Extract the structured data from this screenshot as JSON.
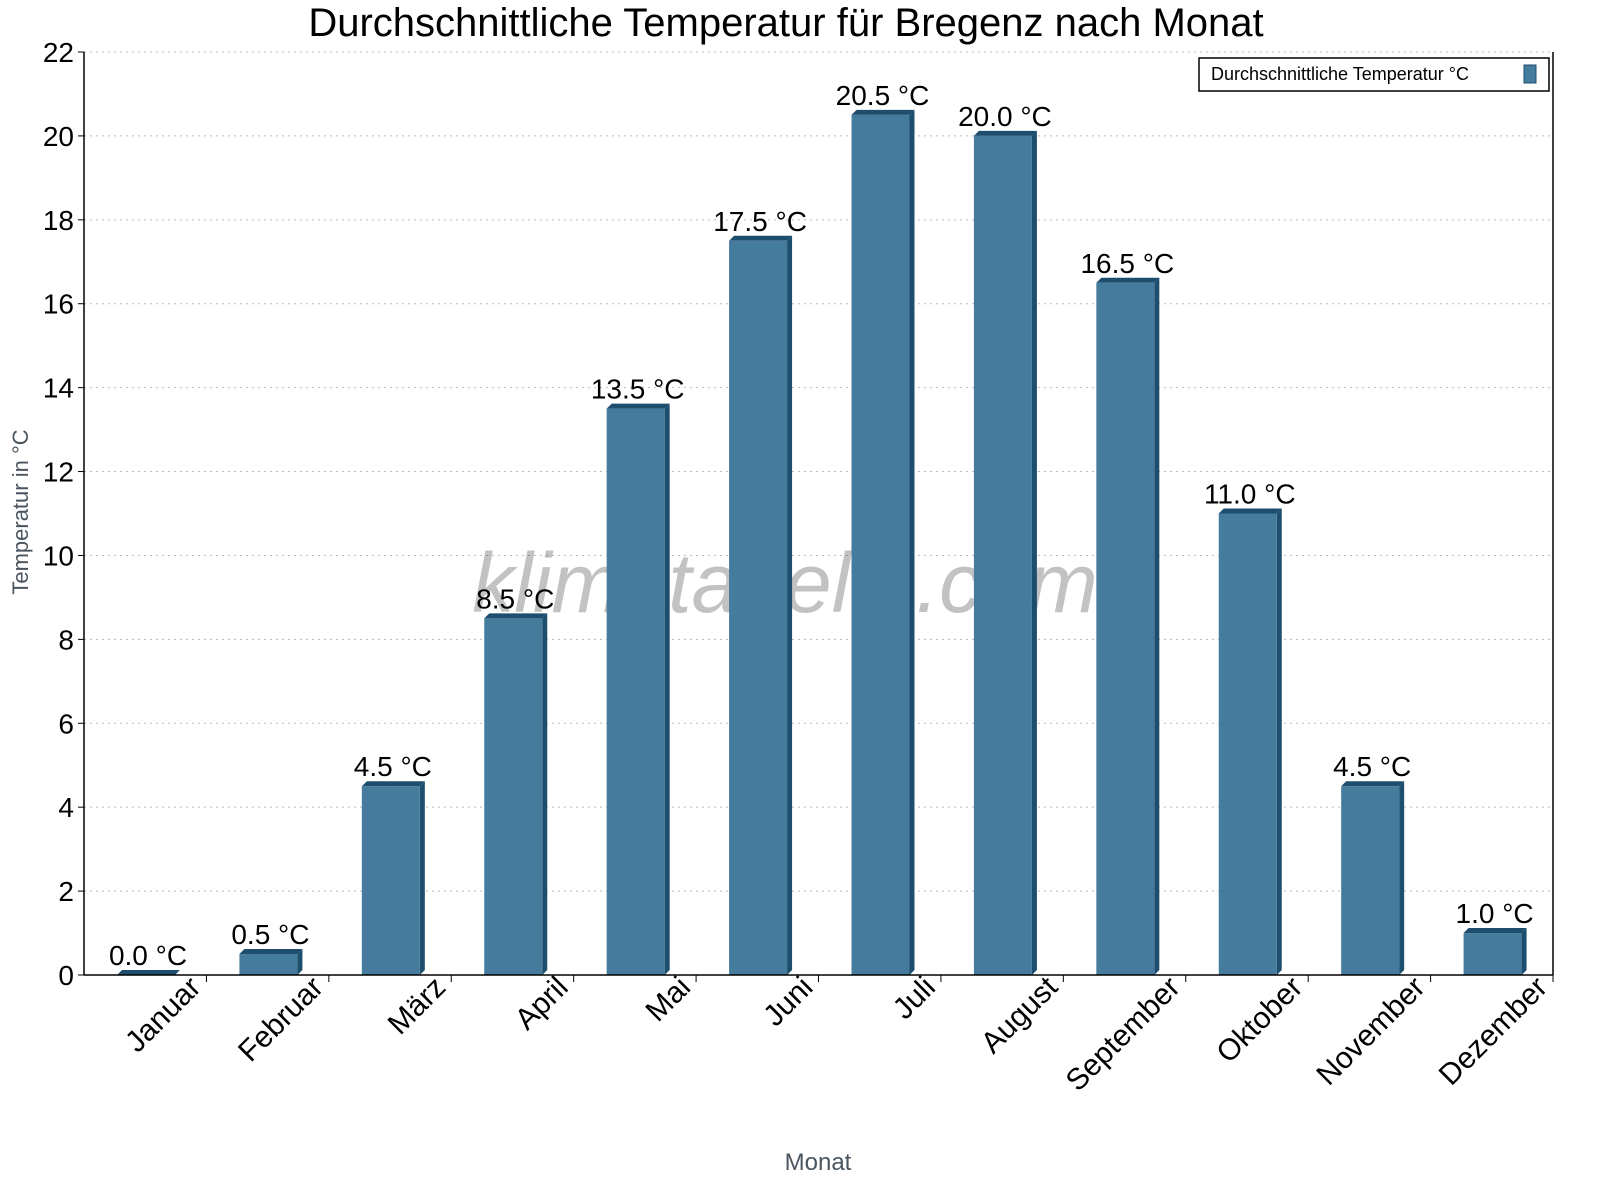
{
  "chart_data": {
    "type": "bar",
    "title": "Durchschnittliche Temperatur für Bregenz nach Monat",
    "xlabel": "Monat",
    "ylabel": "Temperatur in °C",
    "categories": [
      "Januar",
      "Februar",
      "März",
      "April",
      "Mai",
      "Juni",
      "Juli",
      "August",
      "September",
      "Oktober",
      "November",
      "Dezember"
    ],
    "series": [
      {
        "name": "Durchschnittliche Temperatur °C",
        "values": [
          0.0,
          0.5,
          4.5,
          8.5,
          13.5,
          17.5,
          20.5,
          20.0,
          16.5,
          11.0,
          4.5,
          1.0
        ],
        "labels": [
          "0.0 °C",
          "0.5 °C",
          "4.5 °C",
          "8.5 °C",
          "13.5 °C",
          "17.5 °C",
          "20.5 °C",
          "20.0 °C",
          "16.5 °C",
          "11.0 °C",
          "4.5 °C",
          "1.0 °C"
        ]
      }
    ],
    "ylim": [
      0,
      22
    ],
    "yticks": [
      "0",
      "2",
      "4",
      "6",
      "8",
      "10",
      "12",
      "14",
      "16",
      "18",
      "20",
      "22"
    ],
    "grid": true,
    "legend": "top-right",
    "colors": {
      "bar": "#457b9d",
      "bar_side": "#1d4e6e"
    }
  },
  "watermark": "klimatabelle.com"
}
